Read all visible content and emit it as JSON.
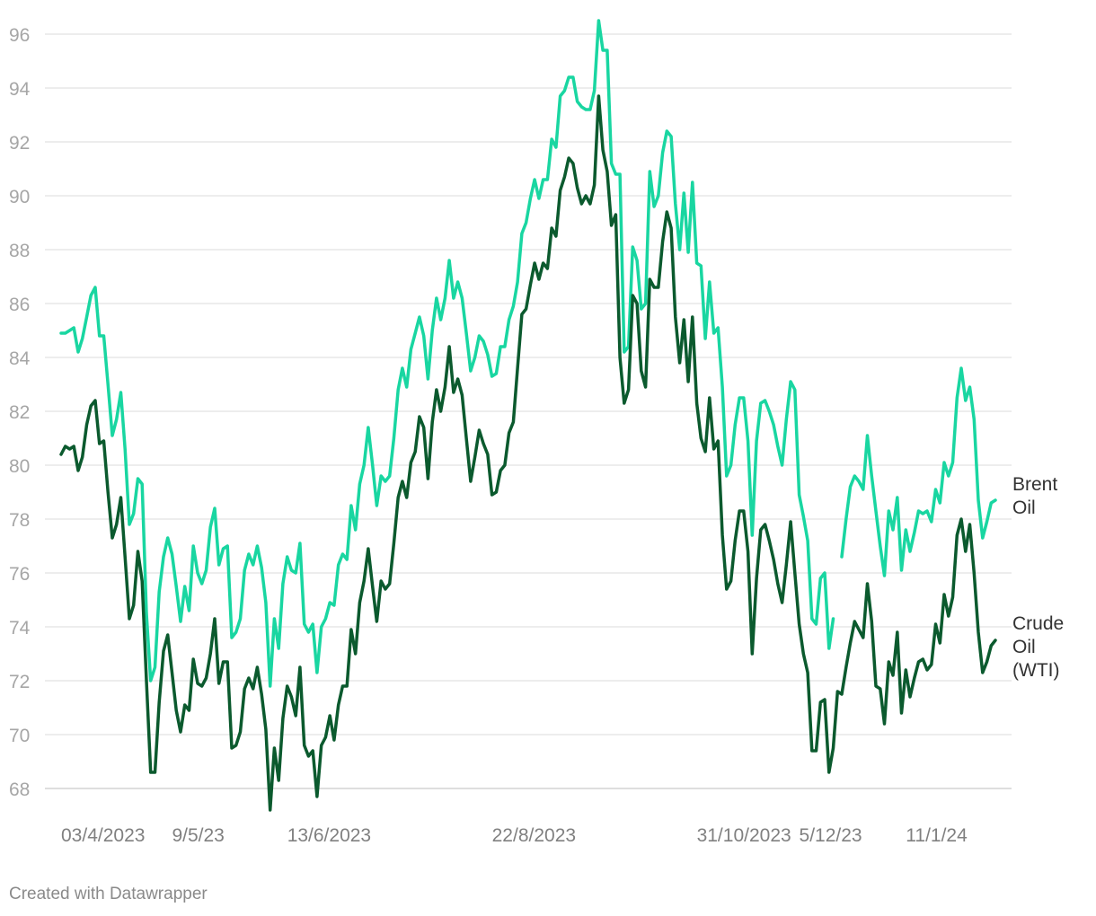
{
  "chart_data": {
    "type": "line",
    "title": "",
    "xlabel": "",
    "ylabel": "",
    "ylim": [
      67.5,
      96.8
    ],
    "yticks": [
      68,
      70,
      72,
      74,
      76,
      78,
      80,
      82,
      84,
      86,
      88,
      90,
      92,
      94,
      96
    ],
    "grid": true,
    "legend": "direct labels at line ends",
    "x_ticks": [
      {
        "label": "03/4/2023",
        "index": 0
      },
      {
        "label": "9/5/23",
        "index": 26
      },
      {
        "label": "13/6/2023",
        "index": 53
      },
      {
        "label": "22/8/2023",
        "index": 101
      },
      {
        "label": "31/10/2023",
        "index": 149
      },
      {
        "label": "5/12/23",
        "index": 173
      },
      {
        "label": "11/1/24",
        "index": 198
      }
    ],
    "series": [
      {
        "name": "Brent Oil",
        "label_lines": [
          "Brent",
          "Oil"
        ],
        "color": "#19d6a1",
        "values": [
          84.9,
          84.9,
          85.0,
          85.1,
          84.2,
          84.7,
          85.5,
          86.3,
          86.6,
          84.8,
          84.8,
          83.0,
          81.1,
          81.7,
          82.7,
          80.6,
          77.8,
          78.2,
          79.5,
          79.3,
          74.5,
          72.0,
          72.5,
          75.3,
          76.6,
          77.3,
          76.7,
          75.5,
          74.2,
          75.5,
          74.6,
          77.0,
          76.0,
          75.6,
          76.1,
          77.7,
          78.4,
          76.3,
          76.9,
          77.0,
          73.6,
          73.8,
          74.3,
          76.1,
          76.7,
          76.3,
          77.0,
          76.2,
          74.9,
          71.8,
          74.3,
          73.2,
          75.6,
          76.6,
          76.1,
          76.0,
          77.1,
          74.1,
          73.8,
          74.1,
          72.3,
          74.0,
          74.3,
          74.9,
          74.8,
          76.3,
          76.7,
          76.5,
          78.5,
          77.6,
          79.3,
          80.0,
          81.4,
          80.0,
          78.5,
          79.6,
          79.4,
          79.6,
          81.0,
          82.8,
          83.6,
          82.9,
          84.3,
          84.9,
          85.5,
          84.8,
          83.2,
          85.0,
          86.2,
          85.4,
          86.2,
          87.6,
          86.2,
          86.8,
          86.2,
          84.9,
          83.5,
          84.0,
          84.8,
          84.6,
          84.1,
          83.3,
          83.4,
          84.4,
          84.4,
          85.4,
          85.9,
          86.8,
          88.6,
          89.0,
          89.9,
          90.6,
          89.9,
          90.6,
          90.6,
          92.1,
          91.8,
          93.7,
          93.9,
          94.4,
          94.4,
          93.5,
          93.3,
          93.2,
          93.2,
          93.9,
          96.5,
          95.4,
          95.4,
          91.2,
          90.8,
          90.8,
          84.2,
          84.4,
          88.1,
          87.6,
          85.8,
          86.0,
          90.9,
          89.6,
          90.0,
          91.6,
          92.4,
          92.2,
          89.7,
          88.0,
          90.1,
          87.9,
          90.5,
          87.5,
          87.4,
          84.7,
          86.8,
          84.9,
          85.1,
          82.9,
          79.6,
          80.0,
          81.5,
          82.5,
          82.5,
          80.9,
          77.4,
          80.9,
          82.3,
          82.4,
          82.0,
          81.5,
          80.7,
          80.0,
          81.7,
          83.1,
          82.8,
          78.9,
          78.1,
          77.2,
          74.3,
          74.1,
          75.8,
          76.0,
          73.2,
          74.3,
          null,
          76.6,
          78.0,
          79.2,
          79.6,
          79.4,
          79.1,
          81.1,
          79.6,
          78.3,
          77.0,
          75.9,
          78.3,
          77.6,
          78.8,
          76.1,
          77.6,
          76.8,
          77.5,
          78.3,
          78.2,
          78.3,
          77.9,
          79.1,
          78.6,
          80.1,
          79.6,
          80.1,
          82.5,
          83.6,
          82.4,
          82.9,
          81.7,
          78.7,
          77.3,
          77.9,
          78.6,
          78.7
        ]
      },
      {
        "name": "Crude Oil (WTI)",
        "label_lines": [
          "Crude",
          "Oil",
          "(WTI)"
        ],
        "color": "#0b5a2e",
        "values": [
          80.4,
          80.7,
          80.6,
          80.7,
          79.8,
          80.3,
          81.5,
          82.2,
          82.4,
          80.8,
          80.9,
          79.0,
          77.3,
          77.8,
          78.8,
          76.6,
          74.3,
          74.8,
          76.8,
          75.7,
          72.0,
          68.6,
          68.6,
          71.2,
          73.1,
          73.7,
          72.3,
          70.9,
          70.1,
          71.1,
          70.9,
          72.8,
          71.9,
          71.8,
          72.1,
          73.0,
          74.3,
          71.9,
          72.7,
          72.7,
          69.5,
          69.6,
          70.1,
          71.7,
          72.1,
          71.7,
          72.5,
          71.5,
          70.2,
          67.2,
          69.5,
          68.3,
          70.6,
          71.8,
          71.4,
          70.7,
          72.5,
          69.6,
          69.2,
          69.4,
          67.7,
          69.6,
          69.9,
          70.7,
          69.8,
          71.1,
          71.8,
          71.8,
          73.9,
          73.0,
          74.9,
          75.7,
          76.9,
          75.5,
          74.2,
          75.7,
          75.4,
          75.6,
          77.1,
          78.8,
          79.4,
          78.8,
          80.1,
          80.5,
          81.8,
          81.4,
          79.5,
          81.6,
          82.8,
          82.0,
          82.9,
          84.4,
          82.7,
          83.2,
          82.6,
          81.0,
          79.4,
          80.3,
          81.3,
          80.8,
          80.4,
          78.9,
          79.0,
          79.8,
          80.0,
          81.2,
          81.6,
          83.6,
          85.6,
          85.8,
          86.7,
          87.5,
          86.9,
          87.5,
          87.3,
          88.8,
          88.5,
          90.2,
          90.7,
          91.4,
          91.2,
          90.3,
          89.7,
          90.0,
          89.7,
          90.4,
          93.7,
          91.7,
          90.9,
          88.9,
          89.3,
          84.0,
          82.3,
          82.8,
          86.3,
          86.0,
          83.5,
          82.9,
          86.9,
          86.6,
          86.6,
          88.3,
          89.4,
          88.8,
          85.5,
          83.8,
          85.4,
          83.1,
          85.5,
          82.3,
          81.0,
          80.5,
          82.5,
          80.6,
          80.9,
          77.4,
          75.4,
          75.7,
          77.2,
          78.3,
          78.3,
          76.8,
          73.0,
          75.8,
          77.6,
          77.8,
          77.2,
          76.5,
          75.6,
          74.9,
          76.3,
          77.9,
          76.0,
          74.1,
          73.0,
          72.3,
          69.4,
          69.4,
          71.2,
          71.3,
          68.6,
          69.5,
          71.6,
          71.5,
          72.5,
          73.4,
          74.2,
          73.9,
          73.6,
          75.6,
          74.2,
          71.8,
          71.7,
          70.4,
          72.7,
          72.2,
          73.8,
          70.8,
          72.4,
          71.4,
          72.1,
          72.7,
          72.8,
          72.4,
          72.6,
          74.1,
          73.4,
          75.2,
          74.4,
          75.1,
          77.4,
          78.0,
          76.8,
          77.8,
          76.0,
          73.8,
          72.3,
          72.7,
          73.3,
          73.5
        ]
      }
    ]
  },
  "footer": {
    "credit": "Created with Datawrapper"
  }
}
